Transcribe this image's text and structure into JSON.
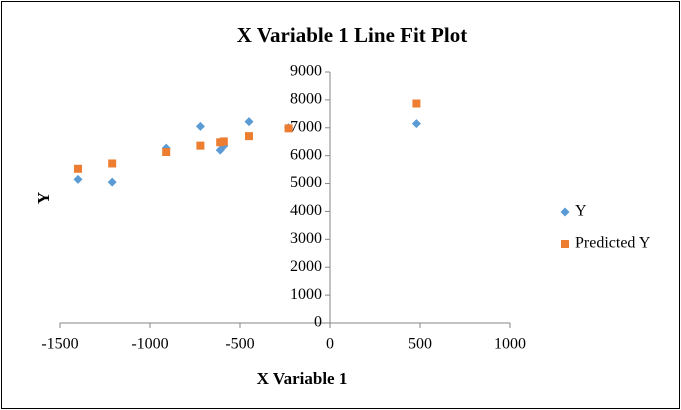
{
  "chart_data": {
    "type": "scatter",
    "title": "X Variable 1 Line Fit  Plot",
    "x_label": "X Variable 1",
    "y_label": "Y",
    "x": [
      -1400,
      -1210,
      -910,
      -720,
      -610,
      -590,
      -450,
      -230,
      480
    ],
    "series": [
      {
        "name": "Y",
        "color": "#5b9bd5",
        "marker": "diamond",
        "values": [
          5150,
          5050,
          6270,
          7050,
          6200,
          6350,
          7220,
          7000,
          7150
        ]
      },
      {
        "name": "Predicted Y",
        "color": "#ed7d31",
        "marker": "square",
        "values": [
          5530,
          5720,
          6130,
          6360,
          6480,
          6510,
          6700,
          6980,
          7870
        ]
      }
    ],
    "xlim": [
      -1500,
      1000
    ],
    "xticks": [
      -1500,
      -1000,
      -500,
      0,
      500,
      1000
    ],
    "ylim": [
      0,
      9000
    ],
    "yticks": [
      0,
      1000,
      2000,
      3000,
      4000,
      5000,
      6000,
      7000,
      8000,
      9000
    ],
    "grid": false,
    "legend": "right"
  }
}
